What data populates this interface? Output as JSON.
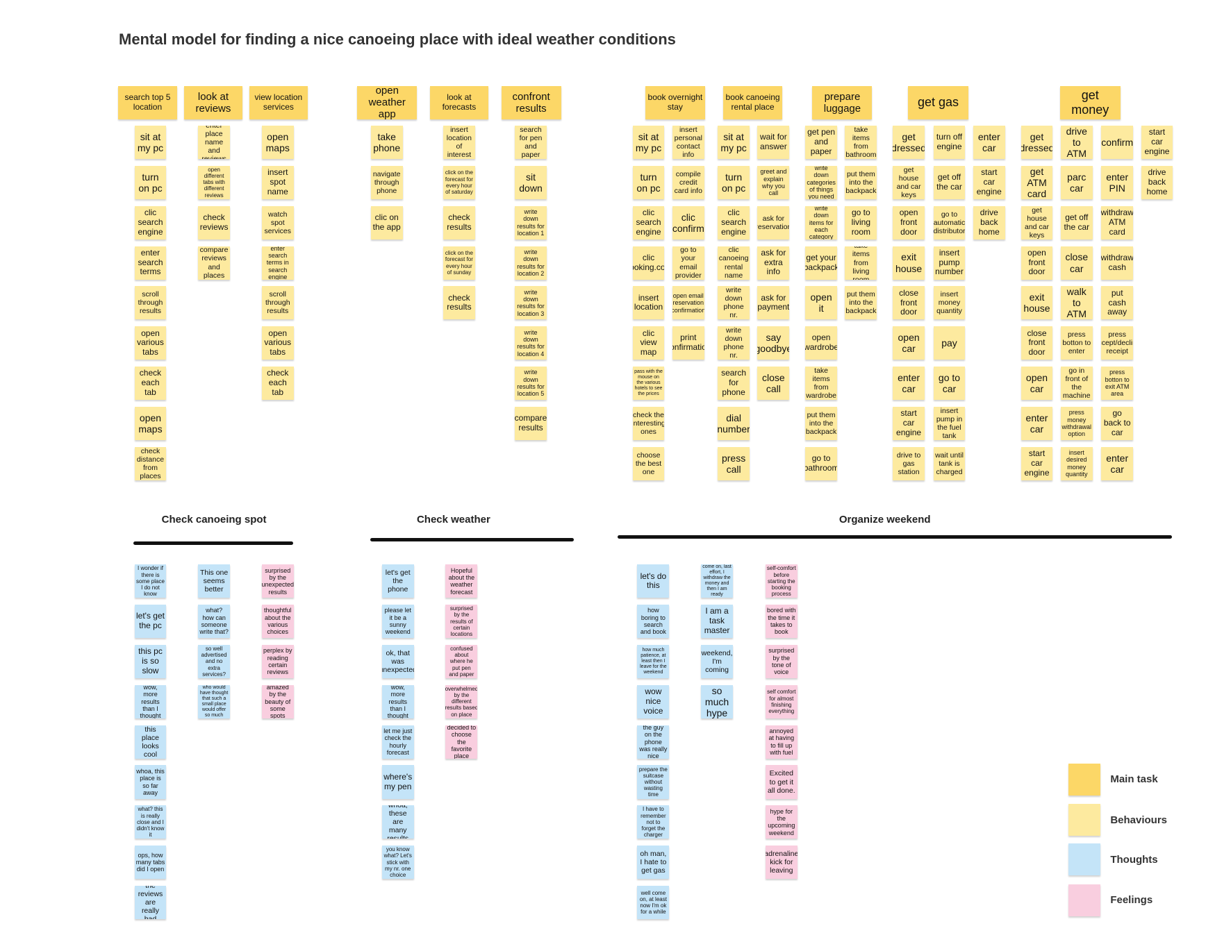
{
  "title": "Mental model for finding a nice canoeing place with ideal weather conditions",
  "colors": {
    "main": "#fcd767",
    "behaviour": "#fdea9f",
    "thought": "#c4e4f8",
    "feeling": "#f9cedf"
  },
  "legend": [
    {
      "key": "main",
      "label": "Main task"
    },
    {
      "key": "behaviour",
      "label": "Behaviours"
    },
    {
      "key": "thought",
      "label": "Thoughts"
    },
    {
      "key": "feeling",
      "label": "Feelings"
    }
  ],
  "sections": [
    {
      "label": "Check canoeing spot"
    },
    {
      "label": "Check weather"
    },
    {
      "label": "Organize weekend"
    }
  ],
  "main_tasks": [
    "search top 5 location",
    "look at reviews",
    "view location services",
    "open weather app",
    "look at forecasts",
    "confront results",
    "book overnight stay",
    "book canoeing rental place",
    "prepare luggage",
    "get gas",
    "get money"
  ],
  "behaviours": [
    [
      "sit at my pc",
      "turn on pc",
      "clic search engine",
      "enter search terms",
      "scroll through results",
      "open various tabs",
      "check each tab",
      "open maps",
      "check distance from places"
    ],
    [
      "enter place name and reviews",
      "open different tabs with different reviews",
      "check reviews",
      "compare reviews and places"
    ],
    [
      "open maps",
      "insert spot name",
      "watch spot services",
      "enter search terms in search engine",
      "scroll through results",
      "open various tabs",
      "check each tab"
    ],
    [
      "take phone",
      "navigate through phone",
      "clic on the app"
    ],
    [
      "insert location of interest",
      "click on the forecast for every hour of saturday",
      "check results",
      "click on the forecast for every hour of sunday",
      "check results"
    ],
    [
      "search for pen and paper",
      "sit down",
      "write down results for location 1",
      "write down results for location 2",
      "write down results for location 3",
      "write down results for location 4",
      "write down results for location 5",
      "compare results"
    ],
    [
      "sit at my pc",
      "turn on pc",
      "clic search engine",
      "clic booking.com",
      "insert location",
      "clic view map",
      "pass with the mouse on the various hotels to see the prices",
      "check the interesting ones",
      "choose the best one"
    ],
    [
      "insert personal contact info",
      "compile credit card info",
      "clic confirm",
      "go to your email provider",
      "open email reservation confirmation",
      "print confirmation"
    ],
    [
      "sit at my pc",
      "turn on pc",
      "clic search engine",
      "clic canoeing rental name",
      "write down phone nr.",
      "write down phone nr.",
      "search for phone",
      "dial number",
      "press call"
    ],
    [
      "wait for answer",
      "greet and explain why you call",
      "ask for reservation",
      "ask for extra info",
      "ask for payment",
      "say goodbye",
      "close call"
    ],
    [
      "get pen and paper",
      "write down categories of things you need",
      "write down items for each category",
      "get your backpack",
      "open it",
      "open wardrobe",
      "take items from wardrobe",
      "put them into the backpack",
      "go to bathroom"
    ],
    [
      "take items from bathroom",
      "put them into the backpack",
      "go to living room",
      "take items from living room",
      "put them into the backpack"
    ],
    [
      "get dressed",
      "get house and car keys",
      "open front door",
      "exit house",
      "close front door",
      "open car",
      "enter car",
      "start car engine",
      "drive to gas station"
    ],
    [
      "turn off engine",
      "get off the car",
      "go to automatic distributor",
      "insert pump number",
      "insert money quantity",
      "pay",
      "go to car",
      "insert pump in the fuel tank",
      "wait until tank is charged"
    ],
    [
      "enter car",
      "start car engine",
      "drive back home"
    ],
    [
      "get dressed",
      "get ATM card",
      "get house and car keys",
      "open front door",
      "exit house",
      "close front door",
      "open car",
      "enter car",
      "start car engine"
    ],
    [
      "drive to ATM",
      "parc car",
      "get off the car",
      "close car",
      "walk to ATM",
      "press botton to enter",
      "go in front of the machine",
      "press money withdrawal option",
      "insert desired money quantity"
    ],
    [
      "confirm",
      "enter PIN",
      "withdraw ATM card",
      "withdraw cash",
      "put cash away",
      "press accept/decline receipt",
      "press botton to exit ATM area",
      "go back to car",
      "enter car"
    ],
    [
      "start car engine",
      "drive back home"
    ]
  ],
  "thoughts": [
    [
      "I wonder if there is some place I do not know",
      "let's get the pc",
      "this pc is so slow",
      "wow, more results than I thought",
      "this place looks cool",
      "whoa, this place is so far away",
      "what? this is really close and I didn't know it",
      "ops, how many tabs did I open",
      "the reviews are really bad"
    ],
    [
      "This one seems better",
      "what? how can someone write that?",
      "so well advertised and no extra services?",
      "who would have thought that such a small place would offer so much"
    ],
    [
      "let's get the phone",
      "please let it be a sunny weekend",
      "ok, that was unexpected",
      "wow, more results than I thought",
      "let me just check the hourly forecast",
      "where's my pen",
      "whoa, these are many results",
      "you know what? Let's stick with my nr. one choice"
    ],
    [
      "let's do this",
      "how boring to search and book",
      "how much patience, at least then I leave for the weekend",
      "wow nice voice",
      "the guy on the phone was really nice",
      "prepare the suitcase without wasting time",
      "I have to remember not to forget the charger",
      "oh man, I hate to get gas",
      "well come on, at least now I'm ok for a while"
    ],
    [
      "come on, last effort, I withdraw the money and then I am ready",
      "I am a task master",
      "weekend, I'm coming",
      "so much hype"
    ]
  ],
  "feelings": [
    [
      "surprised by the unexpected results",
      "thoughtful about the various choices",
      "perplex by reading certain reviews",
      "amazed by the beauty of some spots"
    ],
    [
      "Hopeful about the weather forecast",
      "surprised by the results of certain locations",
      "confused about where he put pen and paper",
      "overwhelmed by the different results based on place",
      "decided to choose the favorite place"
    ],
    [
      "self-comfort before starting the booking process",
      "bored with the time it takes to book",
      "surprised by the tone of voice",
      "self comfort for almost finishing everything",
      "annoyed at having to fill up with fuel",
      "Excited to get it all done.",
      "hype for the upcoming weekend",
      "adrenaline kick for leaving"
    ]
  ]
}
